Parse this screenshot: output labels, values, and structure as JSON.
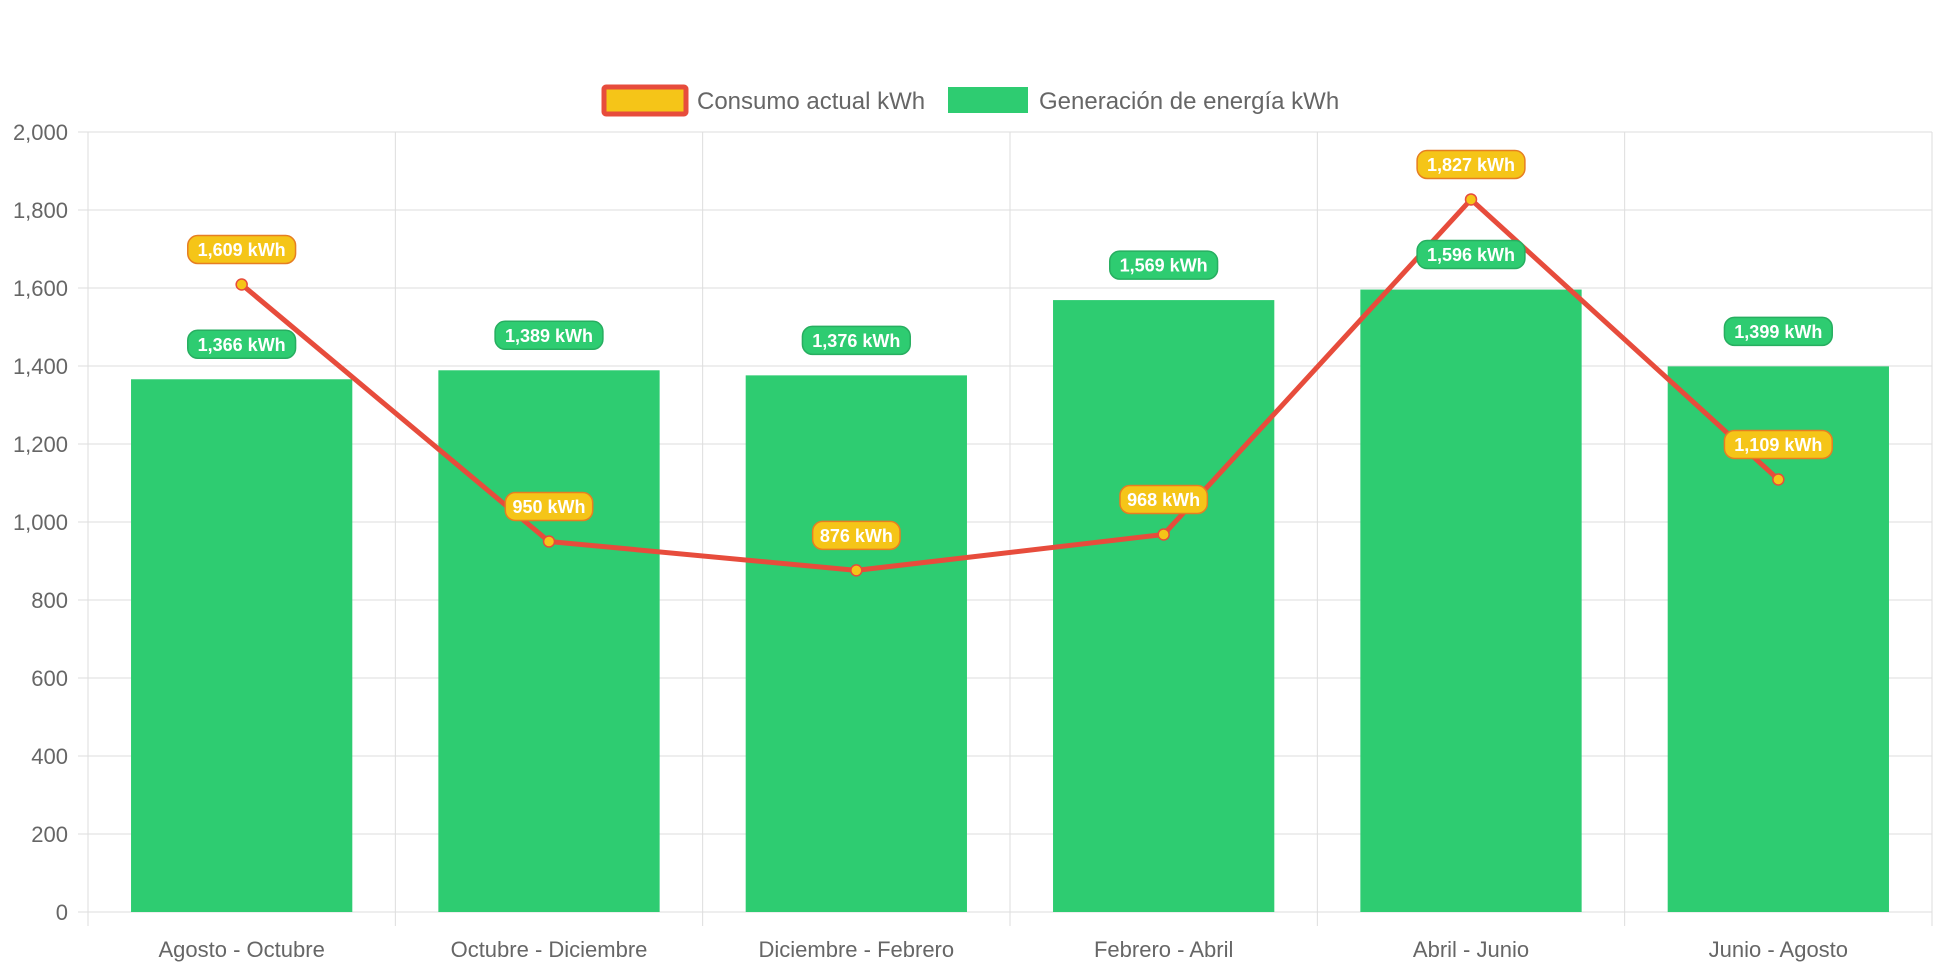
{
  "chart_data": {
    "type": "bar",
    "categories": [
      "Agosto - Octubre",
      "Octubre - Diciembre",
      "Diciembre - Febrero",
      "Febrero - Abril",
      "Abril - Junio",
      "Junio - Agosto"
    ],
    "series": [
      {
        "name": "Consumo actual kWh",
        "type": "line",
        "values": [
          1609,
          950,
          876,
          968,
          1827,
          1109
        ],
        "labels": [
          "1,609 kWh",
          "950 kWh",
          "876 kWh",
          "968 kWh",
          "1,827 kWh",
          "1,109 kWh"
        ],
        "color": "#e74c3c",
        "fill": "#f5c518"
      },
      {
        "name": "Generación de energía kWh",
        "type": "bar",
        "values": [
          1366,
          1389,
          1376,
          1569,
          1596,
          1399
        ],
        "labels": [
          "1,366 kWh",
          "1,389 kWh",
          "1,376 kWh",
          "1,569 kWh",
          "1,596 kWh",
          "1,399 kWh"
        ],
        "color": "#2ecc71"
      }
    ],
    "y_ticks": [
      "0",
      "200",
      "400",
      "600",
      "800",
      "1,000",
      "1,200",
      "1,400",
      "1,600",
      "1,800",
      "2,000"
    ],
    "ylim": [
      0,
      2000
    ],
    "title": "",
    "xlabel": "",
    "ylabel": "",
    "grid": true,
    "legend_position": "top-center",
    "colors": {
      "grid": "#dddddd",
      "tick_text": "#666666",
      "line_label_border": "#e67e22"
    }
  }
}
